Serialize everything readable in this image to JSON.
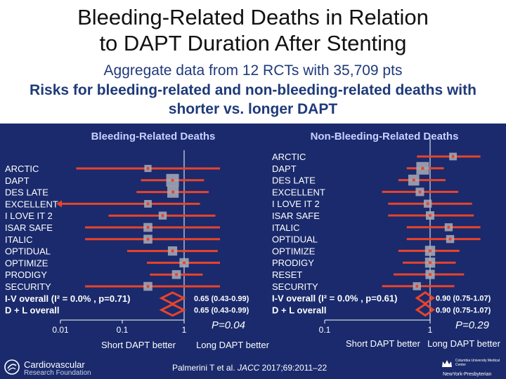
{
  "header": {
    "title_line1": "Bleeding-Related Deaths in Relation",
    "title_line2": "to DAPT Duration After Stenting",
    "subtitle": "Aggregate data from 12 RCTs with 35,709 pts",
    "subtitle2": "Risks for bleeding-related and non-bleeding-related deaths with shorter vs. longer DAPT"
  },
  "colors": {
    "panel_bg": "#1a2a6c",
    "ci_line": "#e8442a",
    "square": "#a9adb8",
    "point": "#e8442a",
    "diamond": "#e8442a",
    "axis": "#ffffff",
    "label": "#ffffff",
    "panel_title": "#c8d0ff"
  },
  "chart_data": [
    {
      "type": "forest",
      "title": "Bleeding-Related Deaths",
      "scale": "log",
      "xlim": [
        0.01,
        10
      ],
      "ticks": [
        0.01,
        0.1,
        1
      ],
      "tick_labels": [
        "0.01",
        "0.1",
        "1"
      ],
      "xlabel_left": "Short DAPT better",
      "xlabel_right": "Long DAPT better",
      "studies": [
        {
          "name": "ARCTIC",
          "est": 0.26,
          "lo": 0.018,
          "hi": 3.8,
          "weight": 0.35,
          "arrow_left": false
        },
        {
          "name": "DAPT",
          "est": 0.65,
          "lo": 0.2,
          "hi": 2.1,
          "weight": 1.0,
          "arrow_left": false
        },
        {
          "name": "DES LATE",
          "est": 0.66,
          "lo": 0.17,
          "hi": 2.5,
          "weight": 0.85,
          "arrow_left": false
        },
        {
          "name": "EXCELLENT",
          "est": 0.26,
          "lo": 0.01,
          "hi": 1.8,
          "weight": 0.4,
          "arrow_left": true
        },
        {
          "name": "I LOVE IT 2",
          "est": 0.45,
          "lo": 0.06,
          "hi": 3.2,
          "weight": 0.45,
          "arrow_left": false
        },
        {
          "name": "ISAR SAFE",
          "est": 0.26,
          "lo": 0.025,
          "hi": 3.8,
          "weight": 0.55,
          "arrow_left": false
        },
        {
          "name": "ITALIC",
          "est": 0.26,
          "lo": 0.025,
          "hi": 3.8,
          "weight": 0.55,
          "arrow_left": false
        },
        {
          "name": "OPTIDUAL",
          "est": 0.65,
          "lo": 0.12,
          "hi": 3.5,
          "weight": 0.6,
          "arrow_left": false
        },
        {
          "name": "OPTIMIZE",
          "est": 1.0,
          "lo": 0.25,
          "hi": 3.8,
          "weight": 0.6,
          "arrow_left": false
        },
        {
          "name": "PRODIGY",
          "est": 0.75,
          "lo": 0.28,
          "hi": 2.0,
          "weight": 0.55,
          "arrow_left": false
        },
        {
          "name": "SECURITY",
          "est": 0.26,
          "lo": 0.025,
          "hi": 3.8,
          "weight": 0.55,
          "arrow_left": false
        }
      ],
      "summaries": [
        {
          "name": "I-V overall (I² = 0.0% , p=0.71)",
          "est": 0.65,
          "lo": 0.43,
          "hi": 0.99,
          "text": "0.65 (0.43-0.99)"
        },
        {
          "name": "D + L overall",
          "est": 0.65,
          "lo": 0.43,
          "hi": 0.99,
          "text": "0.65 (0.43-0.99)"
        }
      ],
      "p_value": "P=0.04"
    },
    {
      "type": "forest",
      "title": "Non-Bleeding-Related Deaths",
      "scale": "log",
      "xlim": [
        0.06,
        3
      ],
      "ticks": [
        0.1,
        1
      ],
      "tick_labels": [
        "0.1",
        "1"
      ],
      "xlabel_left": "Short DAPT better",
      "xlabel_right": "Long DAPT better",
      "studies": [
        {
          "name": "ARCTIC",
          "est": 1.65,
          "lo": 0.75,
          "hi": 3.0,
          "weight": 0.4
        },
        {
          "name": "DAPT",
          "est": 0.85,
          "lo": 0.6,
          "hi": 1.35,
          "weight": 1.0
        },
        {
          "name": "DES LATE",
          "est": 0.7,
          "lo": 0.5,
          "hi": 1.4,
          "weight": 0.8
        },
        {
          "name": "EXCELLENT",
          "est": 0.8,
          "lo": 0.35,
          "hi": 1.85,
          "weight": 0.5
        },
        {
          "name": "I LOVE IT 2",
          "est": 0.95,
          "lo": 0.4,
          "hi": 2.5,
          "weight": 0.45
        },
        {
          "name": "ISAR SAFE",
          "est": 1.0,
          "lo": 0.4,
          "hi": 2.6,
          "weight": 0.5
        },
        {
          "name": "ITALIC",
          "est": 1.5,
          "lo": 0.6,
          "hi": 3.0,
          "weight": 0.45
        },
        {
          "name": "OPTIDUAL",
          "est": 1.55,
          "lo": 0.6,
          "hi": 3.0,
          "weight": 0.45
        },
        {
          "name": "OPTIMIZE",
          "est": 1.0,
          "lo": 0.5,
          "hi": 1.9,
          "weight": 0.7
        },
        {
          "name": "PRODIGY",
          "est": 1.0,
          "lo": 0.55,
          "hi": 1.75,
          "weight": 0.7
        },
        {
          "name": "RESET",
          "est": 1.0,
          "lo": 0.45,
          "hi": 2.1,
          "weight": 0.6
        },
        {
          "name": "SECURITY",
          "est": 0.75,
          "lo": 0.35,
          "hi": 1.7,
          "weight": 0.45
        }
      ],
      "summaries": [
        {
          "name": "I-V overall (I² = 0.0% , p=0.61)",
          "est": 0.9,
          "lo": 0.75,
          "hi": 1.07,
          "text": "0.90 (0.75-1.07)"
        },
        {
          "name": "D + L overall",
          "est": 0.9,
          "lo": 0.75,
          "hi": 1.07,
          "text": "0.90 (0.75-1.07)"
        }
      ],
      "p_value": "P=0.29"
    }
  ],
  "footer": {
    "logo_left_line1": "Cardiovascular",
    "logo_left_line2": "Research Foundation",
    "citation_authors": "Palmerini T et al.",
    "citation_journal": "JACC",
    "citation_ref": "2017;69:2011–22",
    "logo_right_line1": "Columbia University Medical Center",
    "logo_right_line2": "NewYork-Presbyterian"
  }
}
